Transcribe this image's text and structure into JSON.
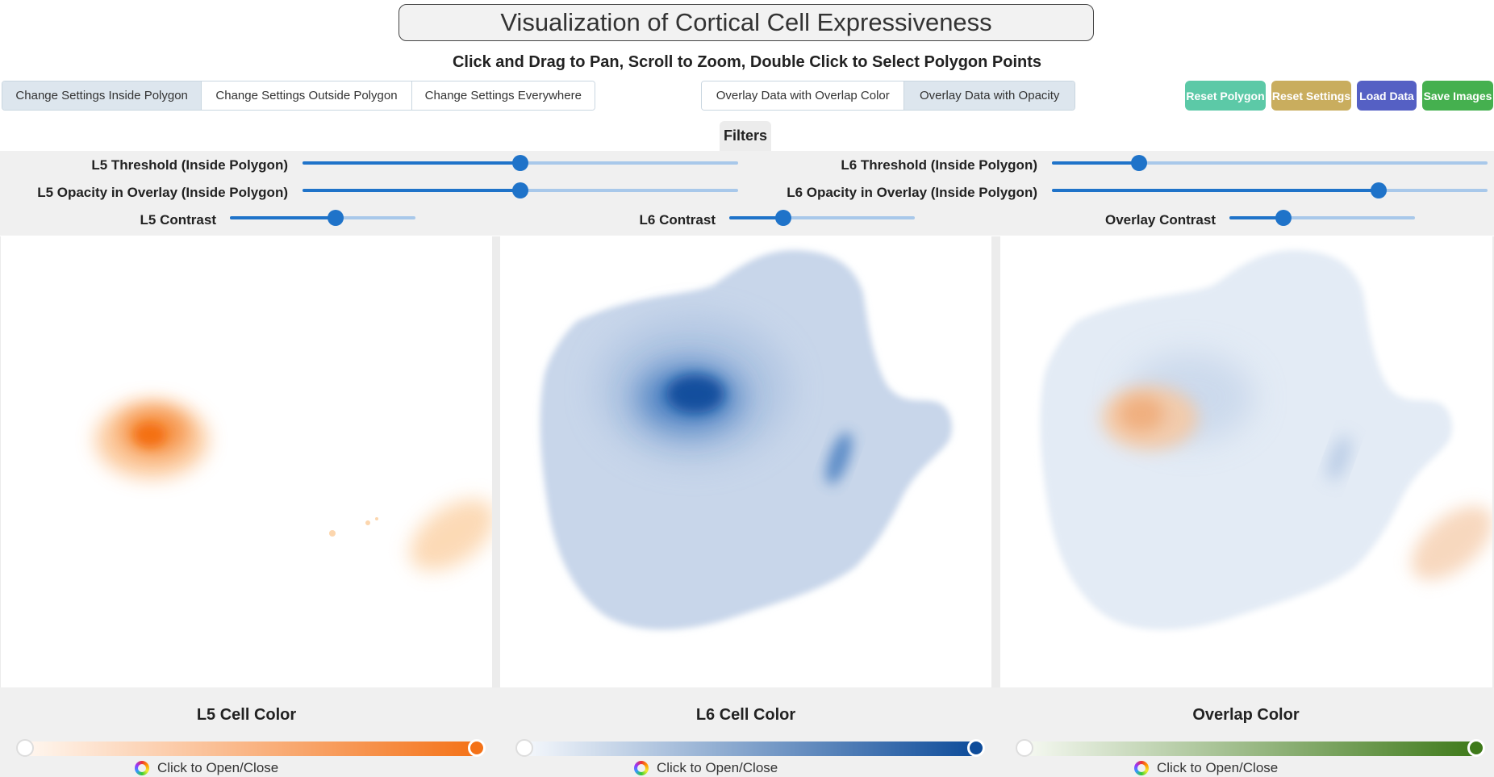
{
  "header": {
    "title": "Visualization of Cortical Cell Expressiveness",
    "subtitle": "Click and Drag to Pan, Scroll to Zoom, Double Click to Select Polygon Points"
  },
  "mode_tabs": [
    {
      "label": "Change Settings Inside Polygon",
      "active": true
    },
    {
      "label": "Change Settings Outside Polygon",
      "active": false
    },
    {
      "label": "Change Settings Everywhere",
      "active": false
    }
  ],
  "overlay_tabs": [
    {
      "label": "Overlay Data with Overlap Color",
      "active": false
    },
    {
      "label": "Overlay Data with Opacity",
      "active": true
    }
  ],
  "actions": {
    "reset_polygon": "Reset Polygon",
    "reset_settings": "Reset Settings",
    "load_data": "Load Data",
    "save_images": "Save Images"
  },
  "colors": {
    "reset_polygon": "#5cc9a7",
    "reset_settings": "#c9ad5e",
    "load_data": "#5560c4",
    "save_images": "#45b04f",
    "slider": "#1f73c9",
    "l5_color": "#f47218",
    "l6_color": "#0e4c9a",
    "overlap_color": "#3f7a1a"
  },
  "filters": {
    "tab_label": "Filters",
    "l5_threshold": {
      "label": "L5 Threshold (Inside Polygon)",
      "value": 0.5
    },
    "l5_opacity": {
      "label": "L5 Opacity in Overlay (Inside Polygon)",
      "value": 0.5
    },
    "l6_threshold": {
      "label": "L6 Threshold (Inside Polygon)",
      "value": 0.2
    },
    "l6_opacity": {
      "label": "L6 Opacity in Overlay (Inside Polygon)",
      "value": 0.75
    },
    "l5_contrast": {
      "label": "L5 Contrast",
      "value": 0.57
    },
    "l6_contrast": {
      "label": "L6 Contrast",
      "value": 0.29
    },
    "overlay_contrast": {
      "label": "Overlay Contrast",
      "value": 0.29
    }
  },
  "color_pickers": [
    {
      "label": "L5 Cell Color",
      "toggle": "Click to Open/Close"
    },
    {
      "label": "L6 Cell Color",
      "toggle": "Click to Open/Close"
    },
    {
      "label": "Overlap Color",
      "toggle": "Click to Open/Close"
    }
  ],
  "icons": {
    "color_wheel": "color-wheel-icon"
  }
}
